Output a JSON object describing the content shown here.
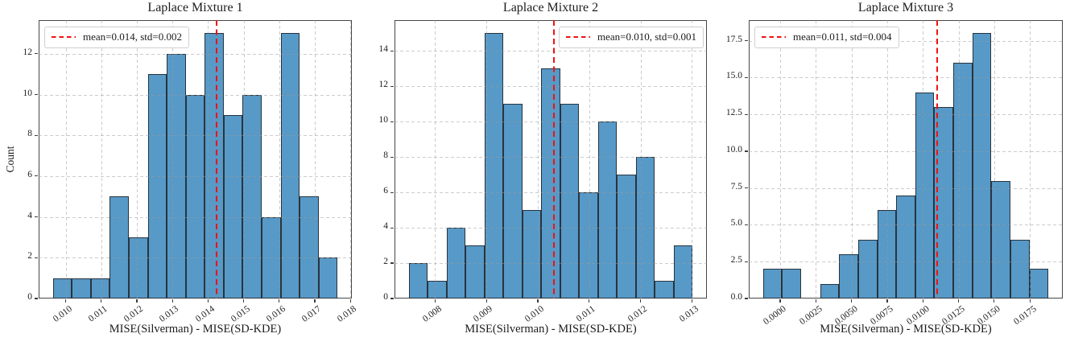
{
  "figure": {
    "background": "#ffffff"
  },
  "style": {
    "bar_fill": "#5799C7",
    "bar_edge": "#28343E",
    "mean_line_color": "#F01212",
    "grid_color": "#9a9a9a",
    "spine_color": "#474747",
    "text_color": "#1c1c1c",
    "legend_border": "#cfcfcf",
    "legend_bg": "#ffffff"
  },
  "chart_data": [
    {
      "type": "bar",
      "subtype": "histogram",
      "title": "Laplace Mixture 1",
      "xlabel": "MISE(Silverman) - MISE(SD-KDE)",
      "ylabel": "Count",
      "legend_label": "mean=0.014, std=0.002",
      "legend_position": "left",
      "mean_line_x": 0.01425,
      "xlim": [
        0.00924,
        0.01804
      ],
      "ylim": [
        0,
        13.65
      ],
      "x_ticks": [
        0.01,
        0.011,
        0.012,
        0.013,
        0.014,
        0.015,
        0.016,
        0.017,
        0.018
      ],
      "x_tick_labels": [
        "0.010",
        "0.011",
        "0.012",
        "0.013",
        "0.014",
        "0.015",
        "0.016",
        "0.017",
        "0.018"
      ],
      "y_ticks": [
        0,
        2,
        4,
        6,
        8,
        10,
        12
      ],
      "y_tick_labels": [
        "0",
        "2",
        "4",
        "6",
        "8",
        "10",
        "12"
      ],
      "bin_start": 0.00964,
      "bin_width": 0.0005333,
      "counts": [
        1,
        1,
        1,
        5,
        3,
        11,
        12,
        10,
        13,
        9,
        10,
        4,
        13,
        5,
        2
      ],
      "grid": true,
      "legend_entries": [
        "mean=0.014, std=0.002"
      ]
    },
    {
      "type": "bar",
      "subtype": "histogram",
      "title": "Laplace Mixture 2",
      "xlabel": "MISE(Silverman) - MISE(SD-KDE)",
      "ylabel": "",
      "legend_label": "mean=0.010, std=0.001",
      "legend_position": "right",
      "mean_line_x": 0.01032,
      "xlim": [
        0.00721,
        0.01329
      ],
      "ylim": [
        0,
        15.75
      ],
      "x_ticks": [
        0.008,
        0.009,
        0.01,
        0.011,
        0.012,
        0.013
      ],
      "x_tick_labels": [
        "0.008",
        "0.009",
        "0.010",
        "0.011",
        "0.012",
        "0.013"
      ],
      "y_ticks": [
        0,
        2,
        4,
        6,
        8,
        10,
        12,
        14
      ],
      "y_tick_labels": [
        "0",
        "2",
        "4",
        "6",
        "8",
        "10",
        "12",
        "14"
      ],
      "bin_start": 0.00749,
      "bin_width": 0.000368,
      "counts": [
        2,
        1,
        4,
        3,
        15,
        11,
        5,
        13,
        11,
        6,
        10,
        7,
        8,
        1,
        3
      ],
      "grid": true,
      "legend_entries": [
        "mean=0.010, std=0.001"
      ]
    },
    {
      "type": "bar",
      "subtype": "histogram",
      "title": "Laplace Mixture 3",
      "xlabel": "MISE(Silverman) - MISE(SD-KDE)",
      "ylabel": "",
      "legend_label": "mean=0.011, std=0.004",
      "legend_position": "left",
      "mean_line_x": 0.011,
      "xlim": [
        -0.0022,
        0.0198
      ],
      "ylim": [
        0,
        18.9
      ],
      "x_ticks": [
        0.0,
        0.0025,
        0.005,
        0.0075,
        0.01,
        0.0125,
        0.015,
        0.0175
      ],
      "x_tick_labels": [
        "0.0000",
        "0.0025",
        "0.0050",
        "0.0075",
        "0.0100",
        "0.0125",
        "0.0150",
        "0.0175"
      ],
      "y_ticks": [
        0,
        2.5,
        5,
        7.5,
        10,
        12.5,
        15,
        17.5
      ],
      "y_tick_labels": [
        "0.0",
        "2.5",
        "5.0",
        "7.5",
        "10.0",
        "12.5",
        "15.0",
        "17.5"
      ],
      "bin_start": -0.0012,
      "bin_width": 0.0013333,
      "counts": [
        2,
        2,
        0,
        1,
        3,
        4,
        6,
        7,
        14,
        13,
        16,
        18,
        8,
        4,
        2
      ],
      "grid": true,
      "legend_entries": [
        "mean=0.011, std=0.004"
      ]
    }
  ]
}
